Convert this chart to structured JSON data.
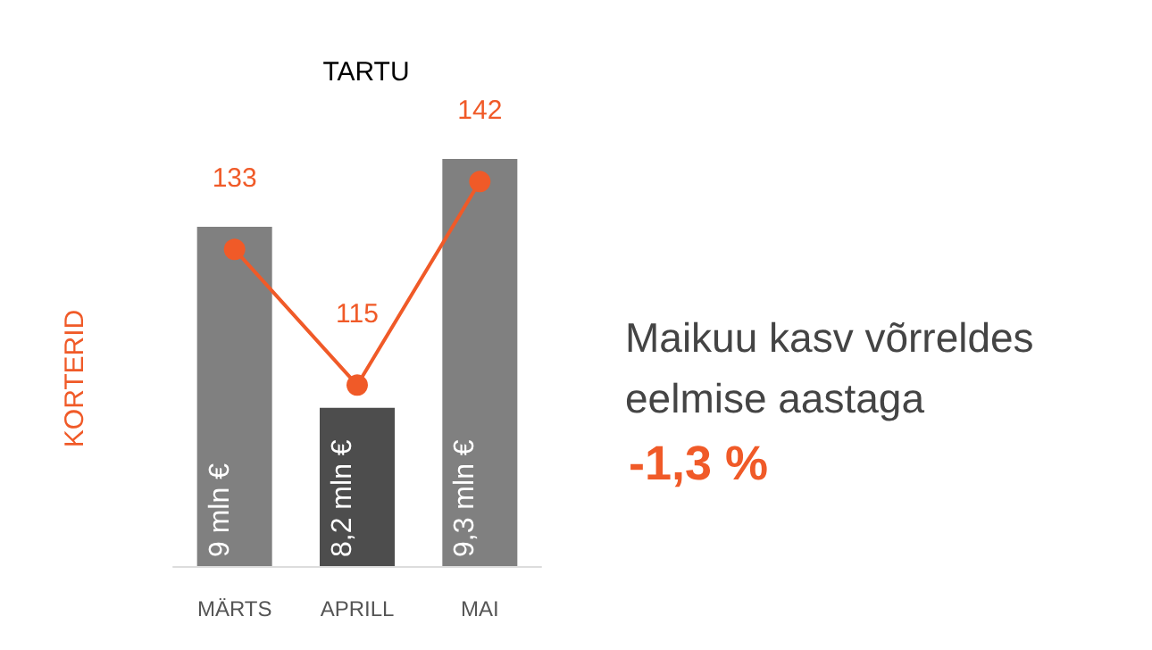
{
  "chart_data": {
    "type": "bar",
    "title": "TARTU",
    "ylabel": "KORTERID",
    "ylim": [
      7.5,
      9.3
    ],
    "categories": [
      "MÄRTS",
      "APRILL",
      "MAI"
    ],
    "series": [
      {
        "colors": [
          "#808080",
          "#4d4d4d",
          "#808080"
        ],
        "values": [
          9,
          8.2,
          9.3
        ],
        "value_labels": [
          "9 mln €",
          "8,2 mln €",
          "9,3 mln €"
        ]
      },
      {
        "type": "line",
        "axis": "y2",
        "color": "#f05a28",
        "values": [
          133,
          115,
          142
        ],
        "data_labels": true,
        "marker": "circle"
      }
    ],
    "y2lim": [
      91,
      145
    ],
    "annotations": [
      "Maikuu kasv võrreldes eelmise aastaga",
      "-1,3 %"
    ],
    "grid": false
  }
}
